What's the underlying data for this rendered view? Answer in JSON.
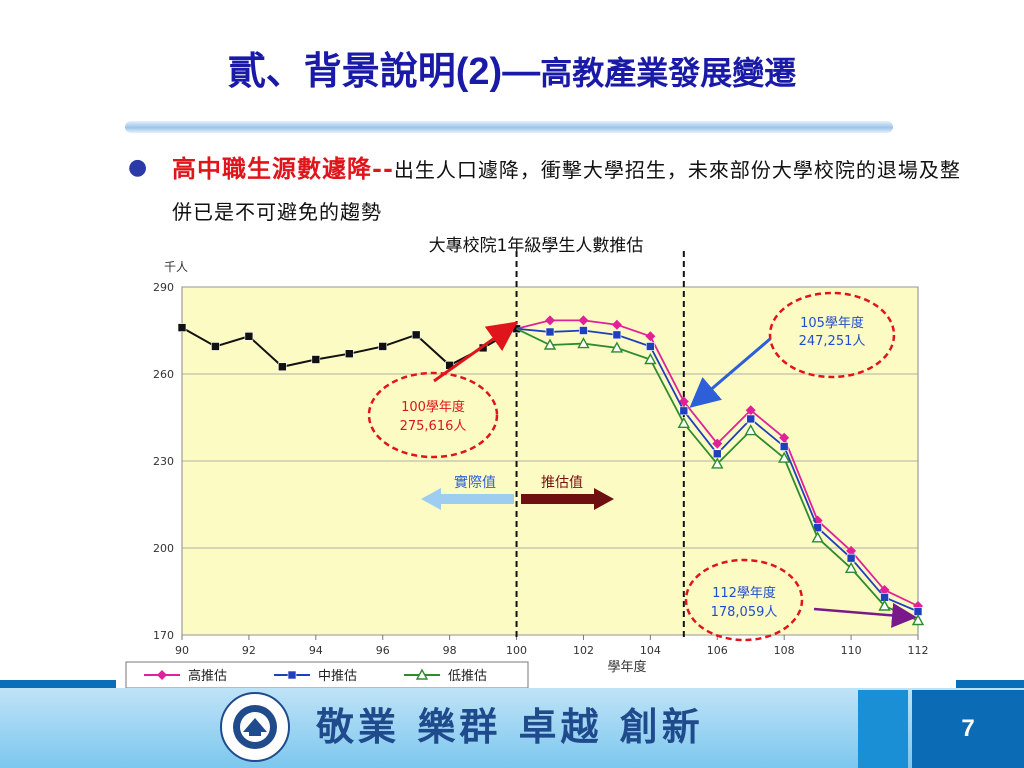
{
  "slide": {
    "title_main": "貳、背景說明",
    "title_code": "(2)—",
    "title_sub": "高教產業發展變遷",
    "bullet_highlight": "高中職生源數遽降--",
    "bullet_text": "出生人口遽降，衝擊大學招生，未來部份大學校院的退場及整併已是不可避免的趨勢",
    "footer_slogan": "敬業 樂群 卓越 創新",
    "page_number": "7",
    "logo_alt": "國立高雄第一科技大學"
  },
  "chart_data": {
    "type": "line",
    "title": "大專校院1年級學生人數推估",
    "ylabel": "千人",
    "xlabel": "學年度",
    "ylim": [
      170,
      290
    ],
    "yticks": [
      170,
      200,
      230,
      260,
      290
    ],
    "xlim": [
      90,
      112
    ],
    "xticks": [
      90,
      92,
      94,
      96,
      98,
      100,
      102,
      104,
      106,
      108,
      110,
      112
    ],
    "grid": true,
    "legend_placement": "bottom-left",
    "divider_years": [
      100,
      105
    ],
    "actual": {
      "x": [
        90,
        91,
        92,
        93,
        94,
        95,
        96,
        97,
        98,
        99,
        100
      ],
      "values": [
        276,
        269.5,
        273,
        262.5,
        265,
        267,
        269.5,
        273.5,
        263,
        269,
        275.6
      ]
    },
    "series": [
      {
        "name": "高推估",
        "color": "#e0219a",
        "marker": "diamond",
        "x": [
          100,
          101,
          102,
          103,
          104,
          105,
          106,
          107,
          108,
          109,
          110,
          111,
          112
        ],
        "values": [
          275.6,
          278.5,
          278.5,
          277,
          273,
          250.5,
          236,
          247.5,
          238,
          209.5,
          199,
          185.5,
          180
        ]
      },
      {
        "name": "中推估",
        "color": "#1f3fbf",
        "marker": "square",
        "x": [
          100,
          101,
          102,
          103,
          104,
          105,
          106,
          107,
          108,
          109,
          110,
          111,
          112
        ],
        "values": [
          275.6,
          274.5,
          275,
          273.5,
          269.5,
          247.3,
          232.5,
          244.5,
          235,
          207,
          196.5,
          183,
          178.1
        ]
      },
      {
        "name": "低推估",
        "color": "#2e8b2e",
        "marker": "triangle",
        "x": [
          100,
          101,
          102,
          103,
          104,
          105,
          106,
          107,
          108,
          109,
          110,
          111,
          112
        ],
        "values": [
          275.6,
          270,
          270.5,
          269,
          265,
          243,
          229,
          240.5,
          231,
          203.5,
          193,
          180,
          175
        ]
      }
    ],
    "annotations": [
      {
        "id": "ann100",
        "line1": "100學年度",
        "line2": "275,616人",
        "color": "#e0151b"
      },
      {
        "id": "ann105",
        "line1": "105學年度",
        "line2": "247,251人",
        "color": "#1f4fd0"
      },
      {
        "id": "ann112",
        "line1": "112學年度",
        "line2": "178,059人",
        "color": "#1f4fd0"
      }
    ],
    "arrow_labels": {
      "actual": "實際值",
      "forecast": "推估值"
    }
  }
}
